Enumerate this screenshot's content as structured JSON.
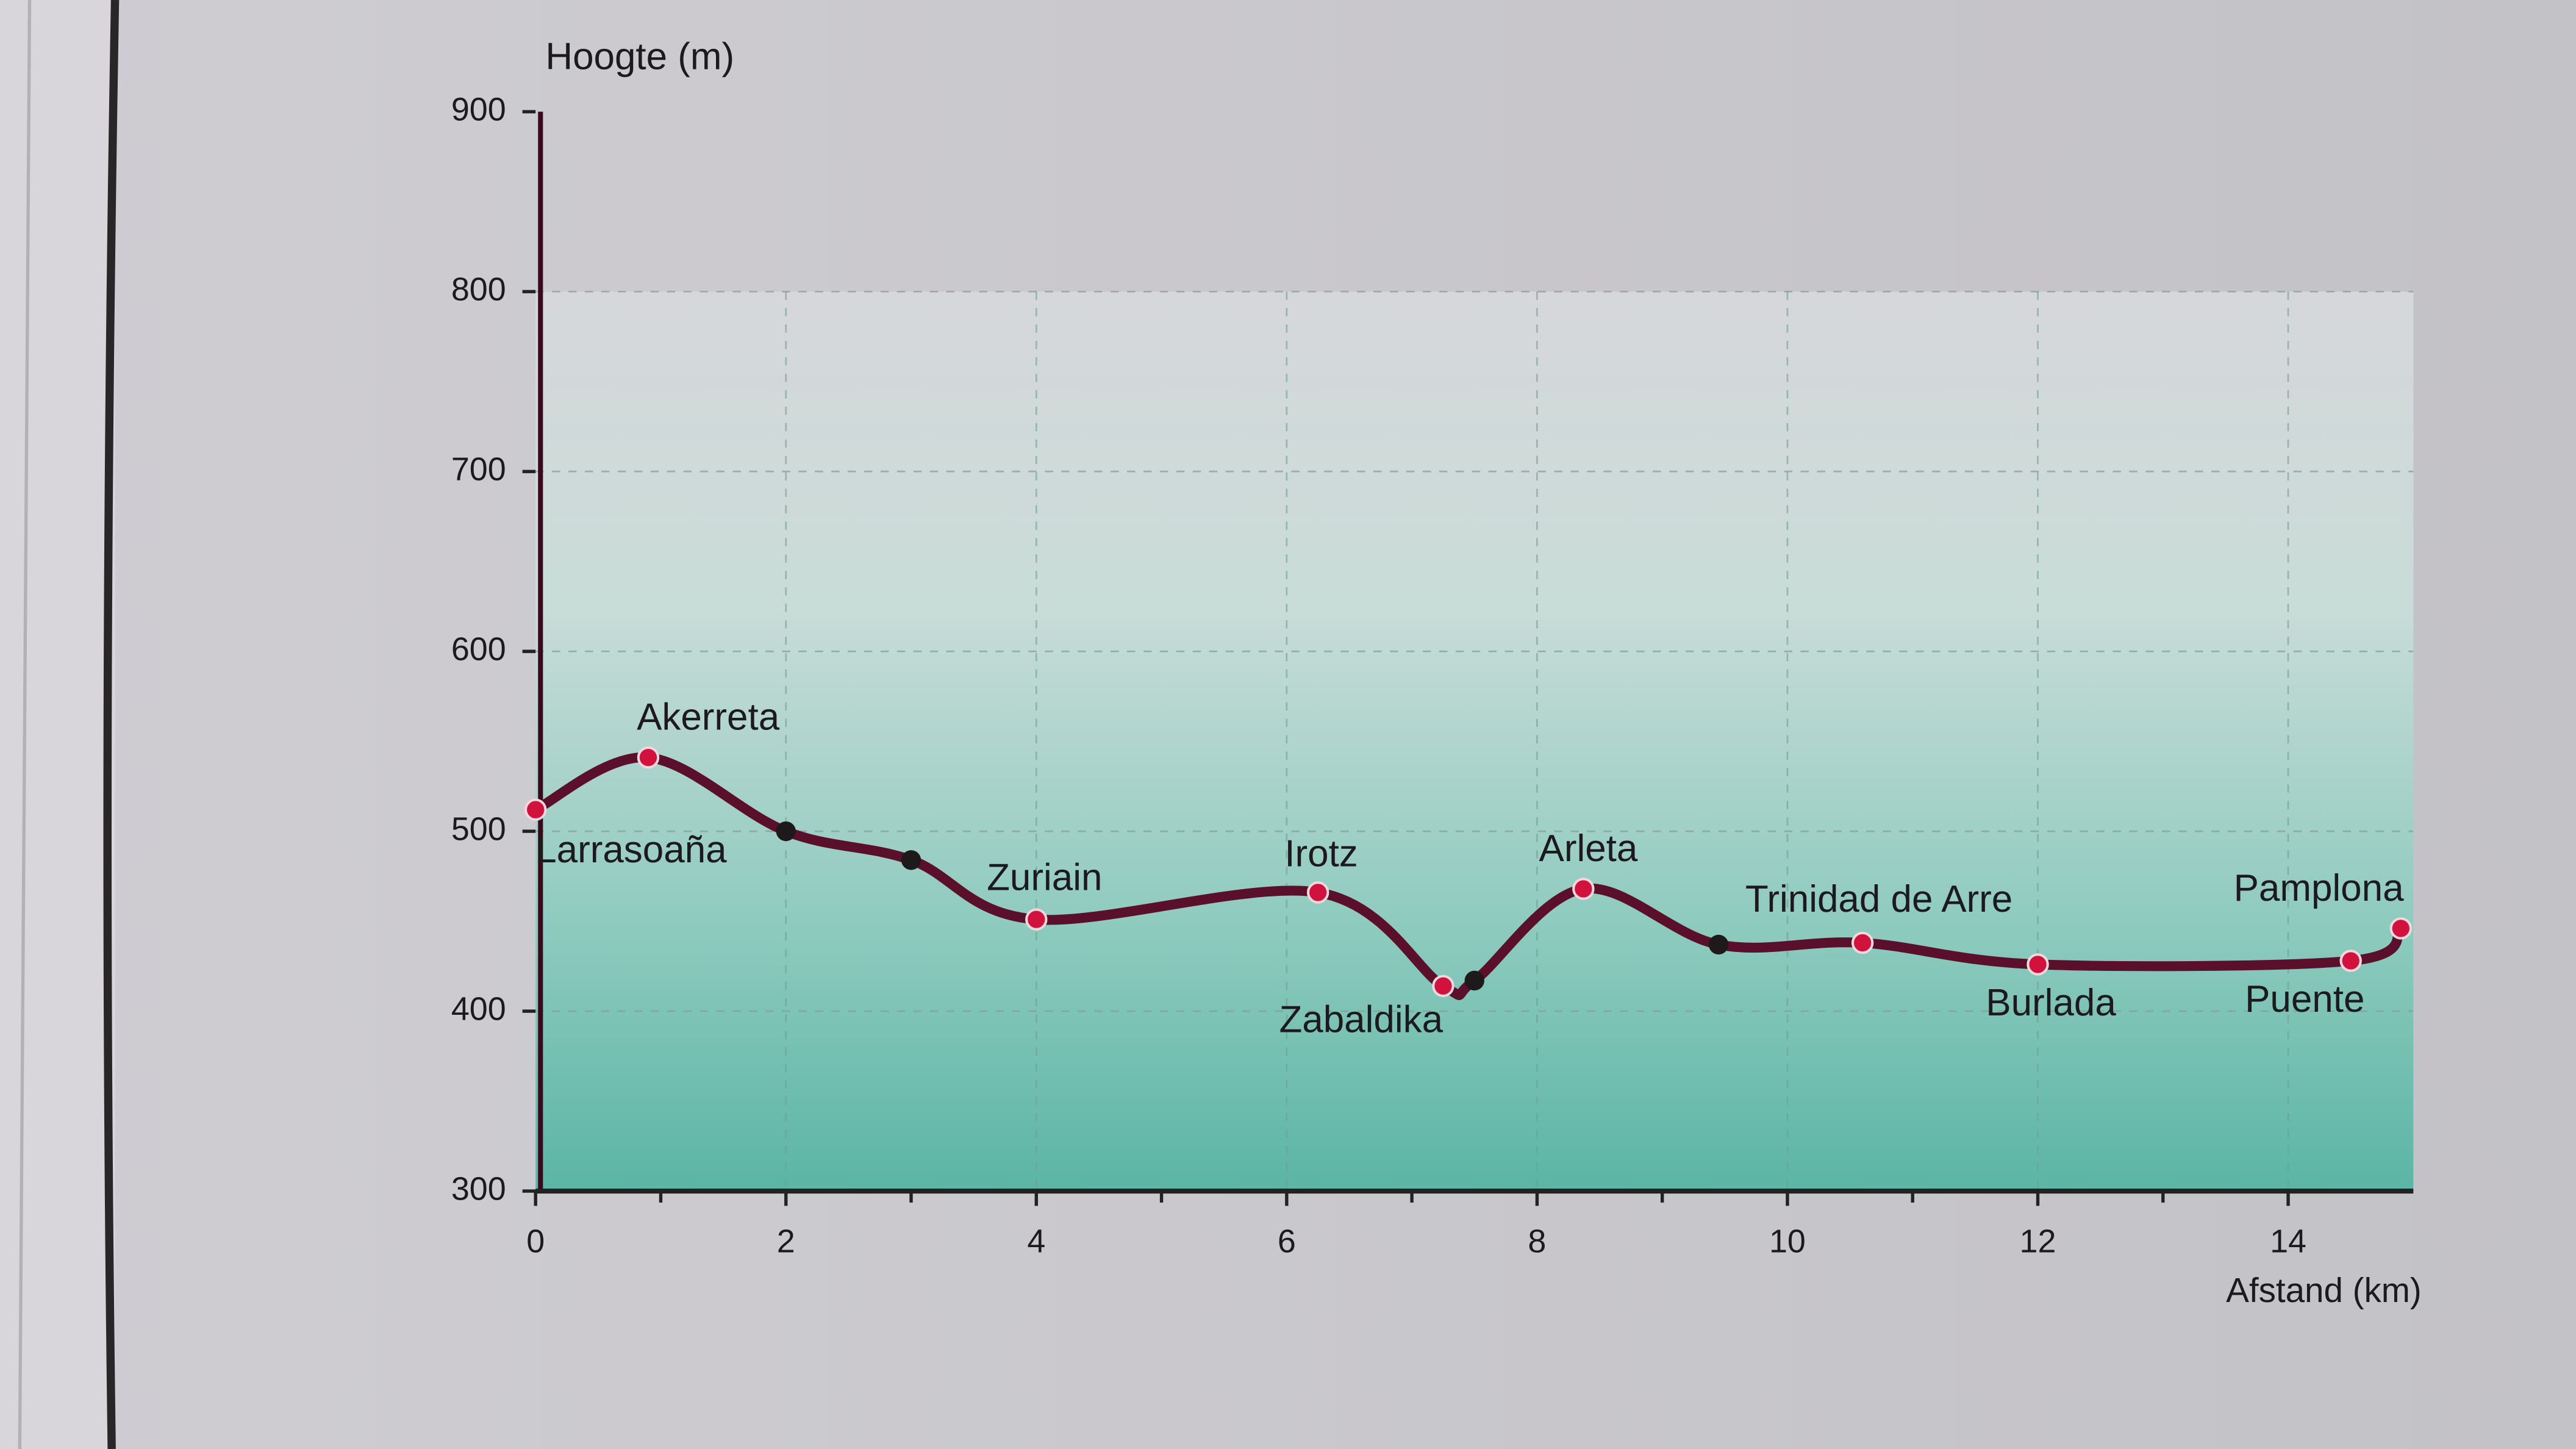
{
  "chart_data": {
    "type": "line",
    "y_axis_label": "Hoogte (m)",
    "x_axis_label": "Afstand (km)",
    "x": [
      0,
      0.9,
      2.0,
      3.0,
      4.0,
      6.25,
      7.25,
      7.5,
      8.37,
      9.45,
      10.6,
      12.0,
      14.5,
      14.9
    ],
    "values": [
      512,
      541,
      500,
      484,
      451,
      466,
      414,
      417,
      468,
      437,
      438,
      426,
      428,
      446
    ],
    "labels": [
      "Larrasoaña",
      "Akerreta",
      null,
      null,
      "Zuriain",
      "Irotz",
      "Zabaldika",
      null,
      "Arleta",
      null,
      "Trinidad de Arre",
      "Burlada",
      "Puente",
      "Pamplona"
    ],
    "color": "#5a0f2a",
    "marker_color": "#d0123c",
    "unlabeled_marker_color": "#1e1a1c",
    "xlim": [
      0,
      15
    ],
    "ylim": [
      300,
      900
    ],
    "xticks": [
      0,
      2,
      4,
      6,
      8,
      10,
      12,
      14
    ],
    "minor_xticks": [
      1,
      3,
      5,
      7,
      9,
      11,
      13
    ],
    "yticks": [
      300,
      400,
      500,
      600,
      700,
      800,
      900
    ],
    "grid": true
  }
}
